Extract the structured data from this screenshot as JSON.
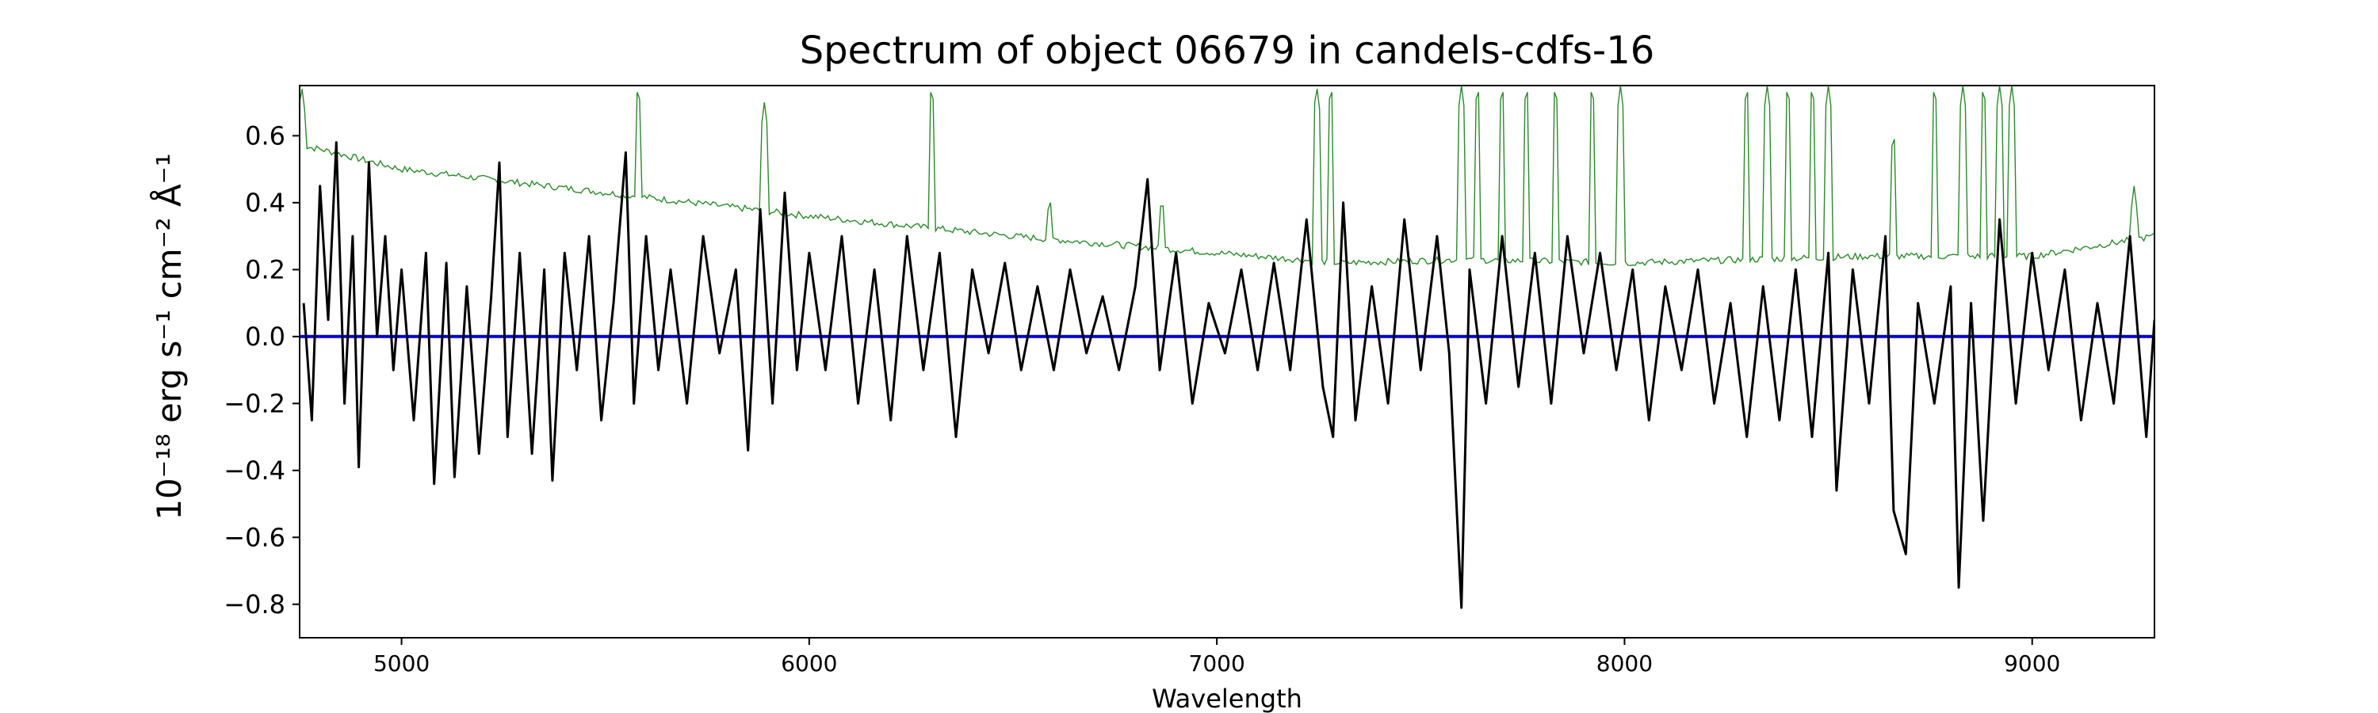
{
  "chart_data": {
    "type": "line",
    "title": "Spectrum of object 06679 in candels-cdfs-16",
    "xlabel": "Wavelength",
    "ylabel": "10⁻¹⁸ erg s⁻¹ cm⁻² Å⁻¹",
    "xlim": [
      4750,
      9300
    ],
    "ylim": [
      -0.9,
      0.75
    ],
    "xticks": [
      5000,
      6000,
      7000,
      8000,
      9000
    ],
    "yticks": [
      -0.8,
      -0.6,
      -0.4,
      -0.2,
      0.0,
      0.2,
      0.4,
      0.6
    ],
    "ytick_labels": [
      "−0.8",
      "−0.6",
      "−0.4",
      "−0.2",
      "0.0",
      "0.2",
      "0.4",
      "0.6"
    ],
    "grid": false,
    "legend": "none",
    "series": [
      {
        "color": "#2a8a2a",
        "role": "error",
        "baseline": [
          [
            4750,
            0.57
          ],
          [
            4800,
            0.56
          ],
          [
            5000,
            0.5
          ],
          [
            5500,
            0.43
          ],
          [
            6000,
            0.36
          ],
          [
            6500,
            0.3
          ],
          [
            7000,
            0.25
          ],
          [
            7300,
            0.22
          ],
          [
            7600,
            0.23
          ],
          [
            8000,
            0.22
          ],
          [
            8300,
            0.23
          ],
          [
            8600,
            0.24
          ],
          [
            9000,
            0.24
          ],
          [
            9300,
            0.3
          ]
        ],
        "spikes": [
          [
            4755,
            0.75
          ],
          [
            5580,
            0.75
          ],
          [
            5890,
            0.7
          ],
          [
            6300,
            0.75
          ],
          [
            6590,
            0.42
          ],
          [
            6865,
            0.42
          ],
          [
            7245,
            0.75
          ],
          [
            7280,
            0.75
          ],
          [
            7600,
            0.75
          ],
          [
            7640,
            0.75
          ],
          [
            7700,
            0.75
          ],
          [
            7760,
            0.75
          ],
          [
            7830,
            0.75
          ],
          [
            7920,
            0.75
          ],
          [
            7990,
            0.75
          ],
          [
            8300,
            0.75
          ],
          [
            8350,
            0.75
          ],
          [
            8400,
            0.75
          ],
          [
            8460,
            0.75
          ],
          [
            8500,
            0.75
          ],
          [
            8660,
            0.61
          ],
          [
            8760,
            0.75
          ],
          [
            8830,
            0.75
          ],
          [
            8880,
            0.75
          ],
          [
            8920,
            0.75
          ],
          [
            8950,
            0.75
          ],
          [
            9250,
            0.45
          ]
        ]
      },
      {
        "color": "#000000",
        "role": "flux",
        "points": [
          [
            4760,
            0.1
          ],
          [
            4780,
            -0.25
          ],
          [
            4800,
            0.45
          ],
          [
            4820,
            0.05
          ],
          [
            4840,
            0.58
          ],
          [
            4860,
            -0.2
          ],
          [
            4880,
            0.3
          ],
          [
            4895,
            -0.39
          ],
          [
            4920,
            0.52
          ],
          [
            4940,
            0.0
          ],
          [
            4960,
            0.3
          ],
          [
            4980,
            -0.1
          ],
          [
            5000,
            0.2
          ],
          [
            5030,
            -0.25
          ],
          [
            5060,
            0.25
          ],
          [
            5080,
            -0.44
          ],
          [
            5110,
            0.22
          ],
          [
            5130,
            -0.42
          ],
          [
            5160,
            0.15
          ],
          [
            5190,
            -0.35
          ],
          [
            5220,
            0.12
          ],
          [
            5240,
            0.52
          ],
          [
            5260,
            -0.3
          ],
          [
            5290,
            0.25
          ],
          [
            5320,
            -0.35
          ],
          [
            5350,
            0.2
          ],
          [
            5370,
            -0.43
          ],
          [
            5400,
            0.25
          ],
          [
            5430,
            -0.1
          ],
          [
            5460,
            0.3
          ],
          [
            5490,
            -0.25
          ],
          [
            5520,
            0.1
          ],
          [
            5550,
            0.55
          ],
          [
            5570,
            -0.2
          ],
          [
            5600,
            0.3
          ],
          [
            5630,
            -0.1
          ],
          [
            5660,
            0.2
          ],
          [
            5700,
            -0.2
          ],
          [
            5740,
            0.3
          ],
          [
            5780,
            -0.05
          ],
          [
            5820,
            0.2
          ],
          [
            5850,
            -0.34
          ],
          [
            5880,
            0.38
          ],
          [
            5910,
            -0.2
          ],
          [
            5940,
            0.43
          ],
          [
            5970,
            -0.1
          ],
          [
            6000,
            0.25
          ],
          [
            6040,
            -0.1
          ],
          [
            6080,
            0.3
          ],
          [
            6120,
            -0.2
          ],
          [
            6160,
            0.2
          ],
          [
            6200,
            -0.25
          ],
          [
            6240,
            0.3
          ],
          [
            6280,
            -0.1
          ],
          [
            6320,
            0.25
          ],
          [
            6360,
            -0.3
          ],
          [
            6400,
            0.2
          ],
          [
            6440,
            -0.05
          ],
          [
            6480,
            0.22
          ],
          [
            6520,
            -0.1
          ],
          [
            6560,
            0.15
          ],
          [
            6600,
            -0.1
          ],
          [
            6640,
            0.2
          ],
          [
            6680,
            -0.05
          ],
          [
            6720,
            0.12
          ],
          [
            6760,
            -0.1
          ],
          [
            6800,
            0.15
          ],
          [
            6830,
            0.47
          ],
          [
            6860,
            -0.1
          ],
          [
            6900,
            0.25
          ],
          [
            6940,
            -0.2
          ],
          [
            6980,
            0.1
          ],
          [
            7020,
            -0.05
          ],
          [
            7060,
            0.2
          ],
          [
            7100,
            -0.1
          ],
          [
            7140,
            0.22
          ],
          [
            7180,
            -0.1
          ],
          [
            7220,
            0.35
          ],
          [
            7260,
            -0.15
          ],
          [
            7285,
            -0.3
          ],
          [
            7310,
            0.4
          ],
          [
            7340,
            -0.25
          ],
          [
            7380,
            0.15
          ],
          [
            7420,
            -0.2
          ],
          [
            7460,
            0.35
          ],
          [
            7500,
            -0.1
          ],
          [
            7540,
            0.3
          ],
          [
            7570,
            -0.05
          ],
          [
            7600,
            -0.81
          ],
          [
            7620,
            0.2
          ],
          [
            7660,
            -0.2
          ],
          [
            7700,
            0.3
          ],
          [
            7740,
            -0.15
          ],
          [
            7780,
            0.25
          ],
          [
            7820,
            -0.2
          ],
          [
            7860,
            0.3
          ],
          [
            7900,
            -0.05
          ],
          [
            7940,
            0.25
          ],
          [
            7980,
            -0.1
          ],
          [
            8020,
            0.2
          ],
          [
            8060,
            -0.25
          ],
          [
            8100,
            0.15
          ],
          [
            8140,
            -0.1
          ],
          [
            8180,
            0.2
          ],
          [
            8220,
            -0.2
          ],
          [
            8260,
            0.1
          ],
          [
            8300,
            -0.3
          ],
          [
            8340,
            0.15
          ],
          [
            8380,
            -0.25
          ],
          [
            8420,
            0.2
          ],
          [
            8460,
            -0.3
          ],
          [
            8500,
            0.25
          ],
          [
            8520,
            -0.46
          ],
          [
            8560,
            0.2
          ],
          [
            8600,
            -0.2
          ],
          [
            8640,
            0.3
          ],
          [
            8660,
            -0.52
          ],
          [
            8690,
            -0.65
          ],
          [
            8720,
            0.1
          ],
          [
            8760,
            -0.2
          ],
          [
            8800,
            0.15
          ],
          [
            8820,
            -0.75
          ],
          [
            8850,
            0.1
          ],
          [
            8880,
            -0.55
          ],
          [
            8900,
            -0.1
          ],
          [
            8920,
            0.35
          ],
          [
            8960,
            -0.2
          ],
          [
            9000,
            0.25
          ],
          [
            9040,
            -0.1
          ],
          [
            9080,
            0.2
          ],
          [
            9120,
            -0.25
          ],
          [
            9160,
            0.1
          ],
          [
            9200,
            -0.2
          ],
          [
            9240,
            0.3
          ],
          [
            9280,
            -0.3
          ],
          [
            9300,
            0.05
          ]
        ]
      },
      {
        "color": "#0000cc",
        "role": "zero",
        "points": [
          [
            4750,
            0.0
          ],
          [
            9300,
            0.0
          ]
        ]
      }
    ]
  }
}
